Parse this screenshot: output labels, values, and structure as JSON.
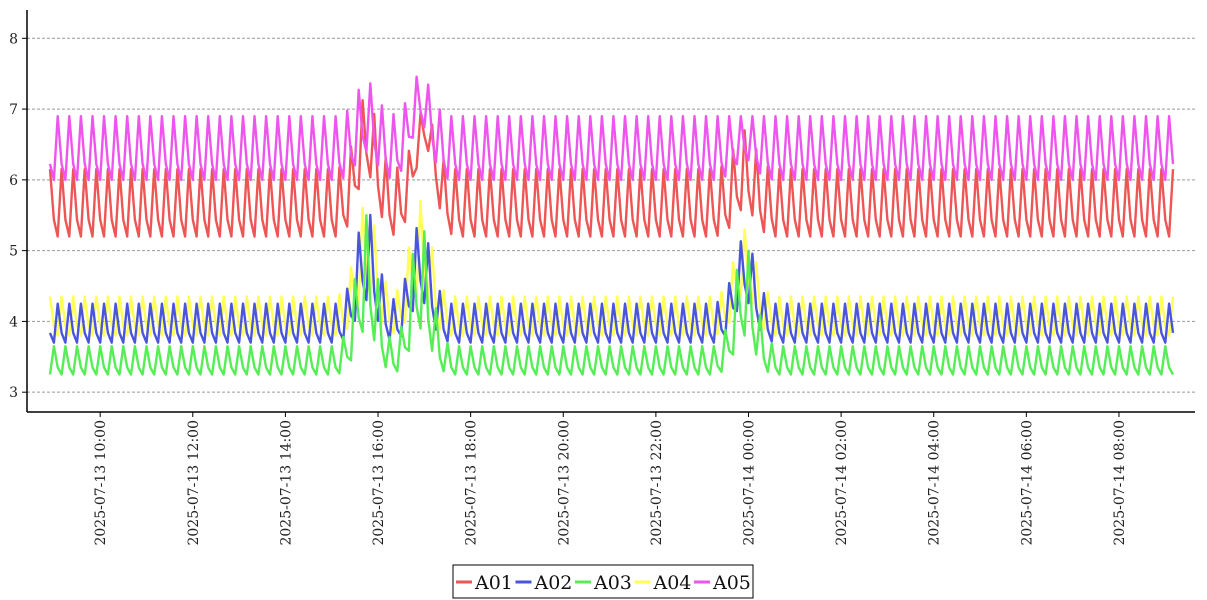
{
  "chart_data": {
    "type": "line",
    "title": "",
    "xlabel": "",
    "ylabel": "",
    "ylim": [
      2.72,
      8.4
    ],
    "x_start": "2025-07-13 08:55",
    "x_end": "2025-07-14 09:10",
    "x_ticks": [
      "2025-07-13 10:00",
      "2025-07-13 12:00",
      "2025-07-13 14:00",
      "2025-07-13 16:00",
      "2025-07-13 18:00",
      "2025-07-13 20:00",
      "2025-07-13 22:00",
      "2025-07-14 00:00",
      "2025-07-14 02:00",
      "2025-07-14 04:00",
      "2025-07-14 06:00",
      "2025-07-14 08:00"
    ],
    "y_ticks": [
      "3",
      "4",
      "5",
      "6",
      "7",
      "8"
    ],
    "grid": "horizontal dashed",
    "legend_position": "bottom-center",
    "series": [
      {
        "name": "A01",
        "color": "#ee5555",
        "low": 5.2,
        "high": 6.15,
        "spikes": [
          {
            "time": "2025-07-13 15:45",
            "low": 6.1,
            "high": 7.2
          },
          {
            "time": "2025-07-13 17:00",
            "low": 6.5,
            "high": 7.0
          },
          {
            "time": "2025-07-13 23:55",
            "low": 5.6,
            "high": 6.7
          }
        ]
      },
      {
        "name": "A02",
        "color": "#4a55dd",
        "low": 3.7,
        "high": 4.25,
        "spikes": [
          {
            "time": "2025-07-13 15:45",
            "low": 4.3,
            "high": 5.6
          },
          {
            "time": "2025-07-13 16:55",
            "low": 4.3,
            "high": 5.4
          },
          {
            "time": "2025-07-13 23:55",
            "low": 4.3,
            "high": 5.2
          }
        ]
      },
      {
        "name": "A03",
        "color": "#55ee55",
        "low": 3.25,
        "high": 3.65,
        "spikes": [
          {
            "time": "2025-07-13 15:45",
            "low": 3.9,
            "high": 5.5
          },
          {
            "time": "2025-07-13 16:55",
            "low": 3.9,
            "high": 5.4
          },
          {
            "time": "2025-07-13 23:55",
            "low": 3.8,
            "high": 5.1
          }
        ]
      },
      {
        "name": "A04",
        "color": "#ffff55",
        "low": 3.8,
        "high": 4.35,
        "spikes": [
          {
            "time": "2025-07-13 15:45",
            "low": 4.4,
            "high": 5.7
          },
          {
            "time": "2025-07-13 16:55",
            "low": 4.4,
            "high": 5.7
          },
          {
            "time": "2025-07-13 23:55",
            "low": 4.4,
            "high": 5.3
          }
        ]
      },
      {
        "name": "A05",
        "color": "#ee55ee",
        "low": 6.0,
        "high": 6.9,
        "spikes": [
          {
            "time": "2025-07-13 15:45",
            "low": 6.4,
            "high": 7.4
          },
          {
            "time": "2025-07-13 16:55",
            "low": 6.8,
            "high": 7.5
          },
          {
            "time": "2025-07-13 23:55",
            "low": 6.3,
            "high": 6.9
          }
        ]
      }
    ]
  }
}
